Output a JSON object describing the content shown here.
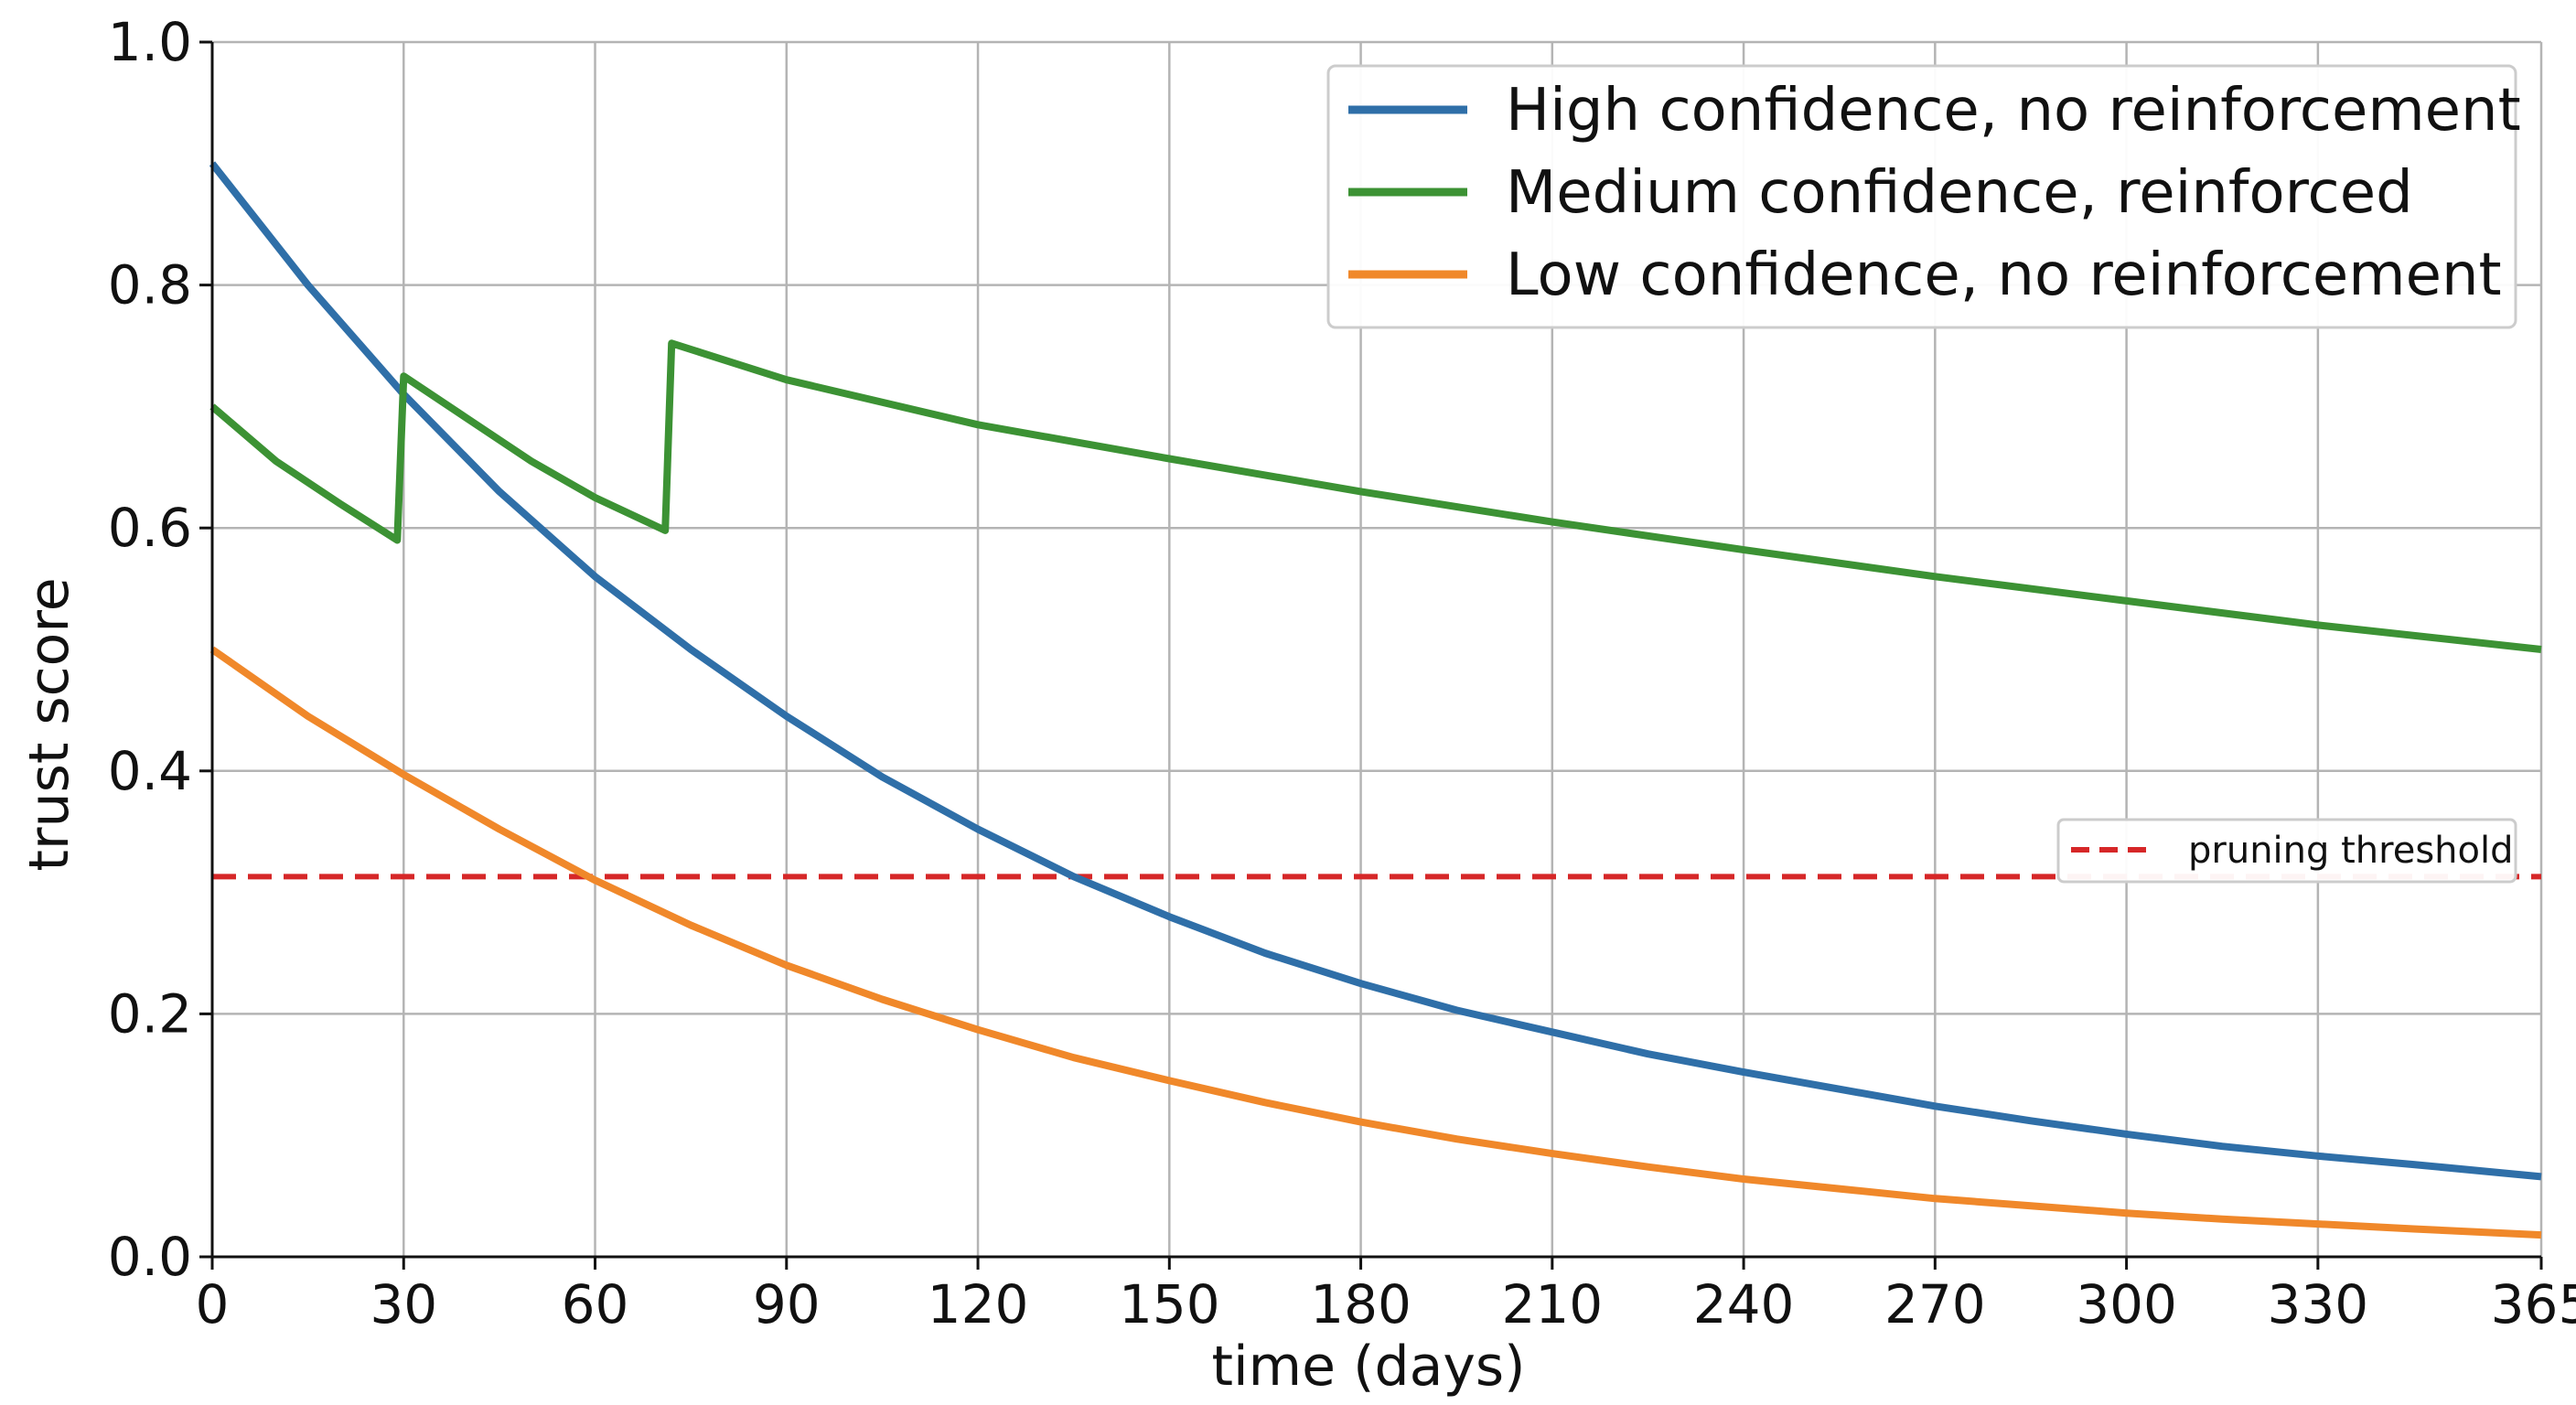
{
  "chart_data": {
    "type": "line",
    "title": "",
    "xlabel": "time (days)",
    "ylabel": "trust score",
    "xlim": [
      0,
      365
    ],
    "ylim": [
      0.0,
      1.0
    ],
    "x_ticks": [
      0,
      30,
      60,
      90,
      120,
      150,
      180,
      210,
      240,
      270,
      300,
      330,
      365
    ],
    "x_tick_labels": [
      "0",
      "30",
      "60",
      "90",
      "120",
      "150",
      "180",
      "210",
      "240",
      "270",
      "300",
      "330",
      "365"
    ],
    "y_ticks": [
      0.0,
      0.2,
      0.4,
      0.6,
      0.8,
      1.0
    ],
    "y_tick_labels": [
      "0.0",
      "0.2",
      "0.4",
      "0.6",
      "0.8",
      "1.0"
    ],
    "grid": true,
    "legend_position": "top-right",
    "series": [
      {
        "name": "High confidence, no reinforcement",
        "color": "#2f6fa8",
        "x": [
          0,
          15,
          30,
          45,
          60,
          75,
          90,
          105,
          120,
          135,
          150,
          165,
          180,
          195,
          210,
          225,
          240,
          255,
          270,
          285,
          300,
          315,
          330,
          345,
          365
        ],
        "y": [
          0.9,
          0.8,
          0.71,
          0.63,
          0.56,
          0.5,
          0.445,
          0.395,
          0.352,
          0.313,
          0.28,
          0.25,
          0.225,
          0.203,
          0.185,
          0.167,
          0.152,
          0.138,
          0.124,
          0.112,
          0.101,
          0.091,
          0.083,
          0.076,
          0.066
        ]
      },
      {
        "name": "Medium confidence, reinforced",
        "color": "#3c9234",
        "x": [
          0,
          10,
          20,
          29,
          30,
          40,
          50,
          60,
          71,
          72,
          90,
          120,
          150,
          180,
          210,
          240,
          270,
          300,
          330,
          365
        ],
        "y": [
          0.7,
          0.655,
          0.62,
          0.59,
          0.725,
          0.69,
          0.655,
          0.625,
          0.598,
          0.752,
          0.722,
          0.685,
          0.657,
          0.63,
          0.605,
          0.582,
          0.56,
          0.54,
          0.52,
          0.5
        ]
      },
      {
        "name": "Low confidence, no reinforcement",
        "color": "#f0882a",
        "x": [
          0,
          15,
          30,
          45,
          60,
          75,
          90,
          105,
          120,
          135,
          150,
          165,
          180,
          195,
          210,
          225,
          240,
          255,
          270,
          285,
          300,
          315,
          330,
          345,
          365
        ],
        "y": [
          0.5,
          0.445,
          0.397,
          0.352,
          0.31,
          0.273,
          0.24,
          0.212,
          0.187,
          0.164,
          0.145,
          0.127,
          0.111,
          0.097,
          0.085,
          0.074,
          0.064,
          0.056,
          0.048,
          0.042,
          0.036,
          0.031,
          0.027,
          0.023,
          0.018
        ]
      }
    ],
    "threshold": {
      "name": "pruning threshold",
      "value": 0.313,
      "color": "#d62728",
      "style": "dashed"
    },
    "grid_color": "#b4b4b4"
  }
}
